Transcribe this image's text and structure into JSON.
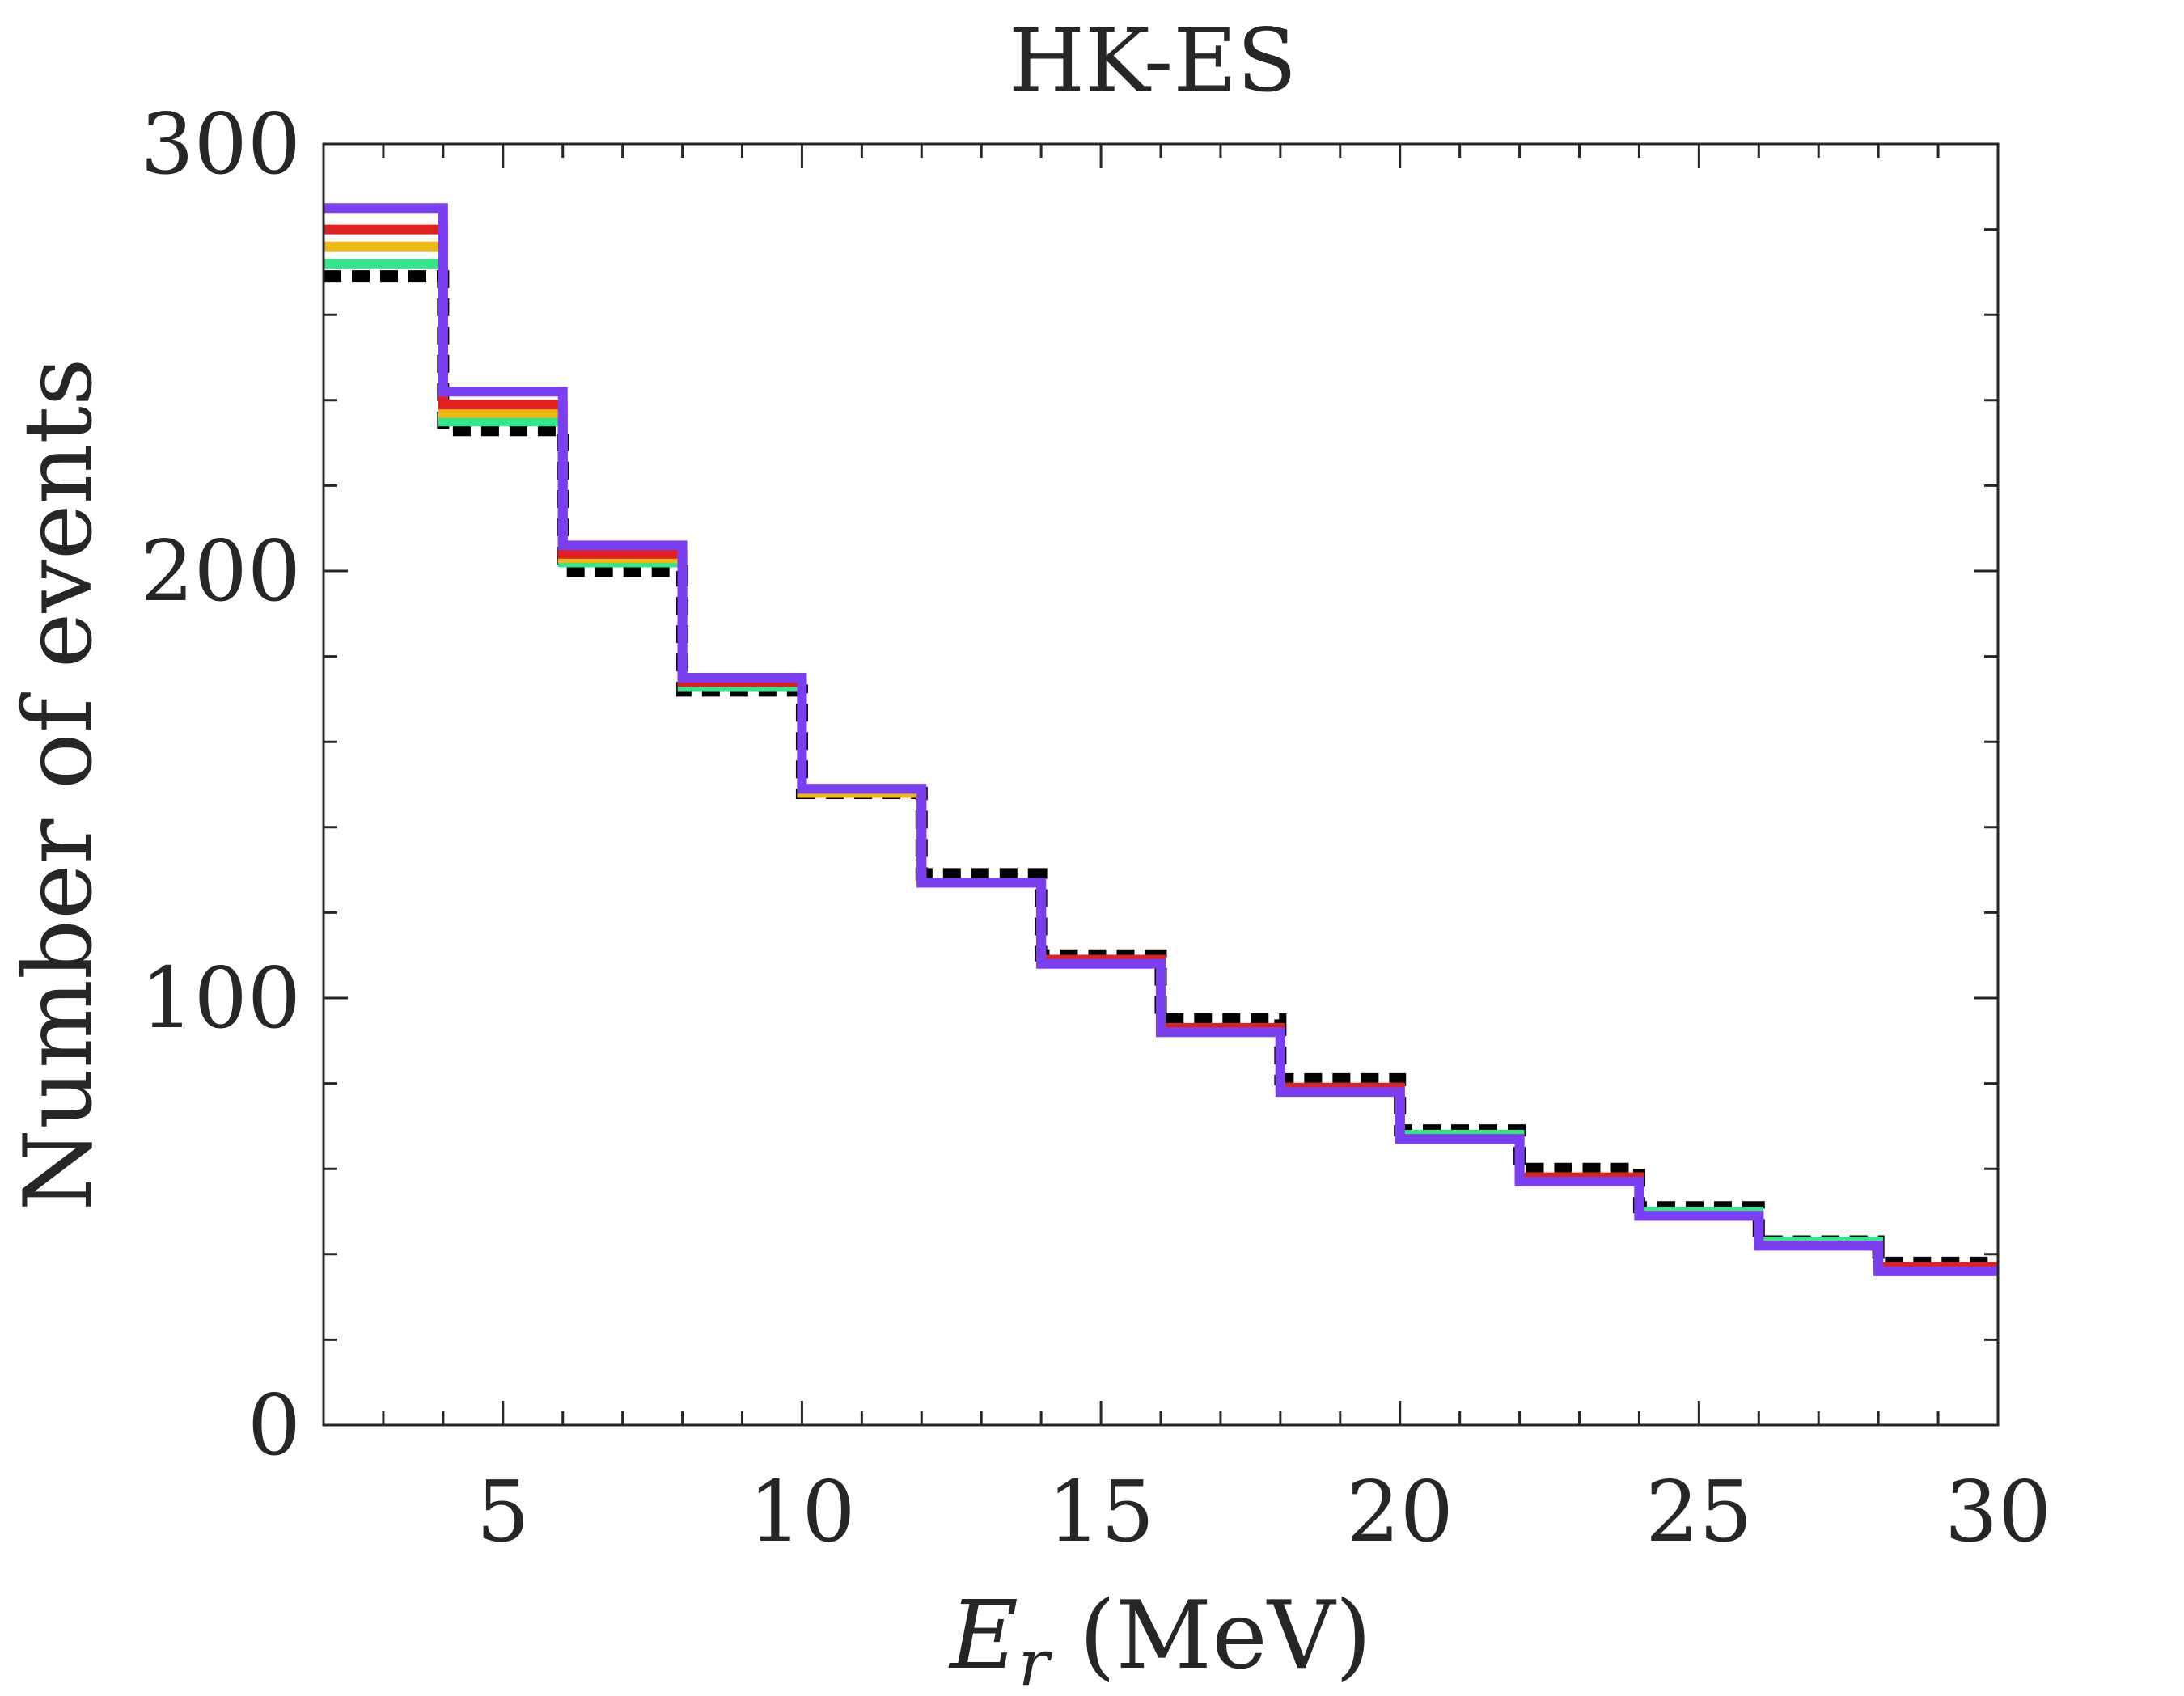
{
  "chart_data": {
    "type": "line",
    "subtype": "step-histogram",
    "title": "HK-ES",
    "xlabel": "E_r (MeV)",
    "xlabel_parts": {
      "symbol": "E",
      "subscript": "r",
      "unit": " (MeV)"
    },
    "ylabel": "Number of events",
    "xlim": [
      2,
      30
    ],
    "ylim": [
      0,
      300
    ],
    "x_ticks": [
      5,
      10,
      15,
      20,
      25,
      30
    ],
    "x_tick_labels": [
      "5",
      "10",
      "15",
      "20",
      "25",
      "30"
    ],
    "y_ticks": [
      0,
      100,
      200,
      300
    ],
    "y_tick_labels": [
      "0",
      "100",
      "200",
      "300"
    ],
    "x_minor_step": 1,
    "y_minor_step": 20,
    "grid": false,
    "legend": "none",
    "bin_edges": [
      2,
      4,
      6,
      8,
      10,
      12,
      14,
      16,
      18,
      20,
      22,
      24,
      26,
      28,
      30
    ],
    "series": [
      {
        "name": "black-dashed",
        "color": "#000000",
        "style": "dashed",
        "values": [
          269,
          233,
          200,
          172,
          148,
          129,
          110,
          95,
          81,
          69,
          60,
          51,
          43,
          38
        ]
      },
      {
        "name": "green",
        "color": "#33e68c",
        "style": "solid",
        "values": [
          272,
          235,
          202,
          173,
          148,
          127,
          109,
          93,
          79,
          68,
          58,
          50,
          43,
          37
        ]
      },
      {
        "name": "yellow",
        "color": "#f0b814",
        "style": "solid",
        "values": [
          276,
          237,
          203,
          174,
          148,
          127,
          109,
          93,
          79,
          67,
          58,
          49,
          42,
          37
        ]
      },
      {
        "name": "red",
        "color": "#e02020",
        "style": "solid",
        "values": [
          280,
          239,
          204,
          174,
          149,
          127,
          109,
          93,
          79,
          67,
          58,
          49,
          42,
          37
        ]
      },
      {
        "name": "purple",
        "color": "#7b3ff2",
        "style": "solid",
        "values": [
          285,
          242,
          206,
          175,
          149,
          127,
          108,
          92,
          78,
          67,
          57,
          49,
          42,
          36
        ]
      }
    ]
  }
}
